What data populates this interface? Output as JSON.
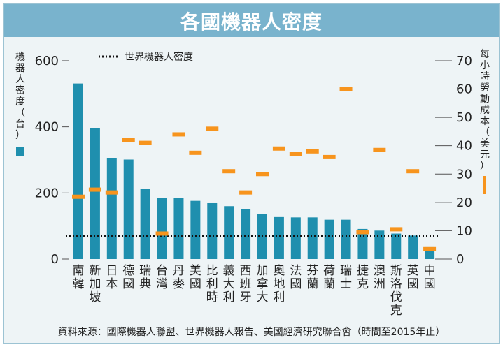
{
  "chart_data": {
    "type": "bar",
    "title": "各國機器人密度",
    "categories": [
      "南韓",
      "新加坡",
      "日本",
      "德國",
      "瑞典",
      "台灣",
      "丹麥",
      "美國",
      "比利時",
      "義大利",
      "西班牙",
      "加拿大",
      "奧地利",
      "法國",
      "芬蘭",
      "荷蘭",
      "瑞士",
      "捷克",
      "澳洲",
      "斯洛伐克",
      "英國",
      "中國"
    ],
    "series": [
      {
        "name": "機器人密度（台）",
        "axis": "left",
        "kind": "bar",
        "values": [
          531,
          396,
          305,
          301,
          212,
          185,
          185,
          176,
          169,
          160,
          150,
          136,
          127,
          126,
          126,
          119,
          119,
          91,
          86,
          77,
          71,
          36
        ]
      },
      {
        "name": "每小時勞動成本（美元）",
        "axis": "right",
        "kind": "marker",
        "values": [
          22,
          24.5,
          23.5,
          42,
          41,
          9,
          44,
          37.5,
          46,
          31,
          23.5,
          30,
          39,
          37,
          38,
          36,
          60,
          9.5,
          38.5,
          10.5,
          31,
          3.5
        ]
      }
    ],
    "reference_line": {
      "name": "世界機器人密度",
      "value": 69,
      "axis": "left"
    },
    "left_axis": {
      "label": "機器人密度（台）",
      "ylim": [
        0,
        640
      ],
      "ticks": [
        0,
        200,
        400,
        600
      ]
    },
    "right_axis": {
      "label": "每小時勞動成本（美元）",
      "ylim": [
        0,
        74.67
      ],
      "ticks": [
        0,
        10,
        20,
        30,
        40,
        50,
        60,
        70
      ]
    },
    "colors": {
      "bar": "#1f8fae",
      "marker": "#f7941d",
      "title_bg": "#79b3cd",
      "background": "#eef4f6"
    }
  },
  "source_note": "資料來源：國際機器人聯盟、世界機器人報告、美國經濟研究聯合會（時間至2015年止）"
}
